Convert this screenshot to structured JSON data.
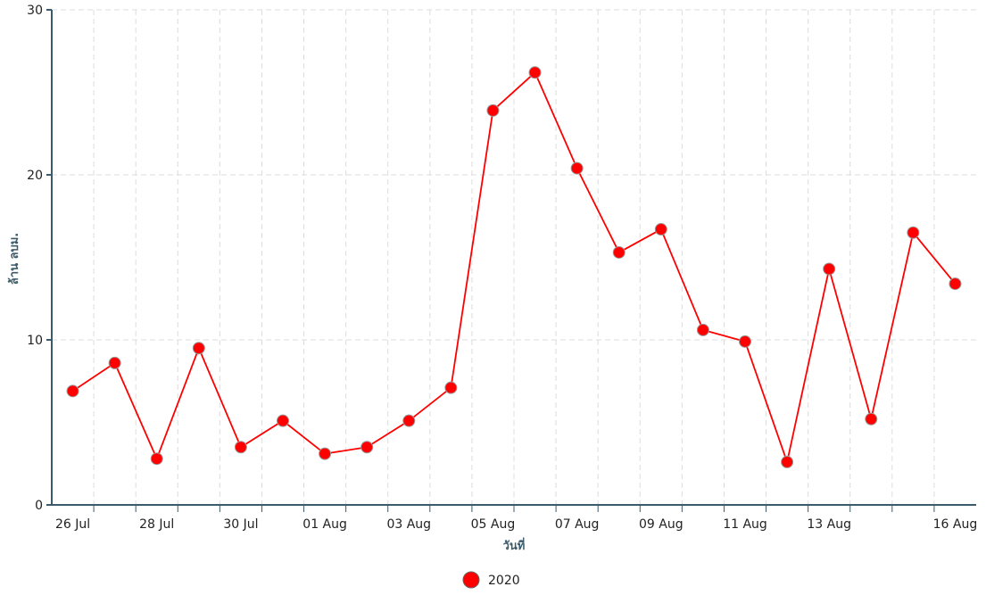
{
  "chart_data": {
    "type": "line",
    "y_label": "ล้าน ลบม.",
    "x_label": "วันที่",
    "categories": [
      "26 Jul",
      null,
      "28 Jul",
      null,
      "30 Jul",
      null,
      "01 Aug",
      null,
      "03 Aug",
      null,
      "05 Aug",
      null,
      "07 Aug",
      null,
      "09 Aug",
      null,
      "11 Aug",
      null,
      "13 Aug",
      null,
      null,
      "16 Aug"
    ],
    "series": [
      {
        "name": "2020",
        "color": "#ff0000",
        "values": [
          6.9,
          8.6,
          2.8,
          9.5,
          3.5,
          5.1,
          3.1,
          3.5,
          5.1,
          7.1,
          23.9,
          26.2,
          20.4,
          15.3,
          16.7,
          10.6,
          9.9,
          2.6,
          14.3,
          5.2,
          16.5,
          13.4
        ]
      }
    ],
    "ylim": [
      0,
      30
    ],
    "yticks": [
      0,
      10,
      20,
      30
    ],
    "grid": true
  }
}
